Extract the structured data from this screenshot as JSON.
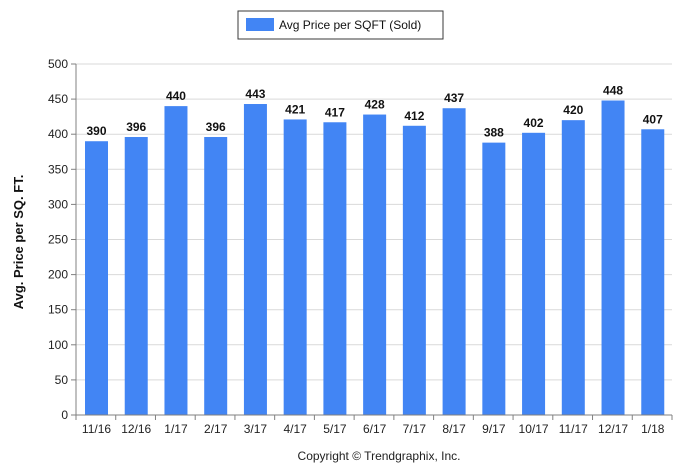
{
  "chart_data": {
    "type": "bar",
    "categories": [
      "11/16",
      "12/16",
      "1/17",
      "2/17",
      "3/17",
      "4/17",
      "5/17",
      "6/17",
      "7/17",
      "8/17",
      "9/17",
      "10/17",
      "11/17",
      "12/17",
      "1/18"
    ],
    "series": [
      {
        "name": "Avg Price per SQFT (Sold)",
        "values": [
          390,
          396,
          440,
          396,
          443,
          421,
          417,
          428,
          412,
          437,
          388,
          402,
          420,
          448,
          407
        ],
        "color": "#4285f4"
      }
    ],
    "ylabel": "Avg. Price per SQ. FT.",
    "xlabel": "",
    "ylim": [
      0,
      500
    ],
    "yticks": [
      0,
      50,
      100,
      150,
      200,
      250,
      300,
      350,
      400,
      450,
      500
    ],
    "grid": true,
    "legend_position": "top-center",
    "data_labels": true
  },
  "footer": {
    "copyright": "Copyright © Trendgraphix, Inc."
  },
  "colors": {
    "bar": "#4285f4",
    "grid": "#d9d9d9",
    "axis": "#808080"
  }
}
